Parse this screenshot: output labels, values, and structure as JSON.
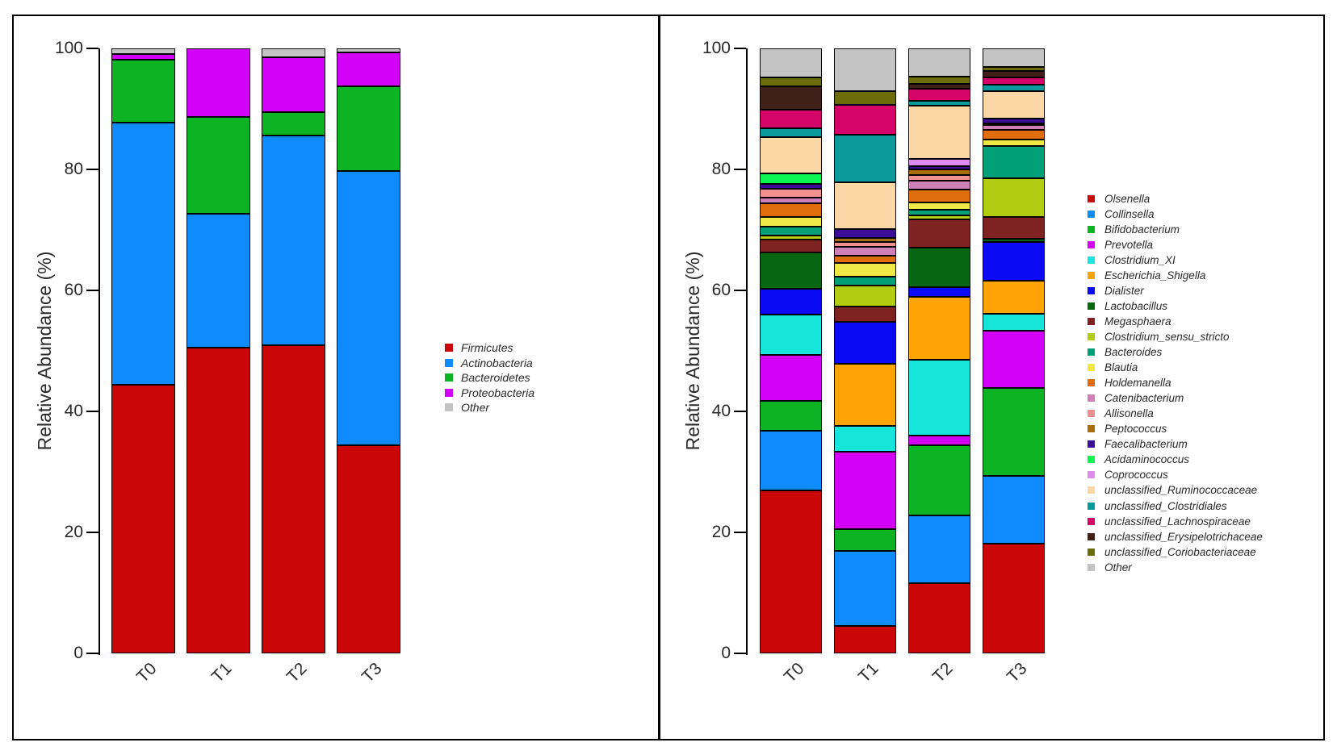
{
  "figure_title": "",
  "chart_data": [
    {
      "type": "bar",
      "stacked": true,
      "title": "",
      "xlabel": "",
      "ylabel": "Relative Abundance (%)",
      "ylim": [
        0,
        100
      ],
      "yticks": [
        0,
        20,
        40,
        60,
        80,
        100
      ],
      "grid": false,
      "legend_position": "right",
      "taxonomic_level": "phylum",
      "categories": [
        "T0",
        "T1",
        "T2",
        "T3"
      ],
      "series": [
        {
          "name": "Firmicutes",
          "color": "#CB0606",
          "values": [
            44.4,
            50.5,
            50.9,
            34.4
          ]
        },
        {
          "name": "Actinobacteria",
          "color": "#0E8CFF",
          "values": [
            43.4,
            22.2,
            34.7,
            45.3
          ]
        },
        {
          "name": "Bacteroidetes",
          "color": "#0CB423",
          "values": [
            10.4,
            16.0,
            3.9,
            14.0
          ]
        },
        {
          "name": "Proteobacteria",
          "color": "#D202F8",
          "values": [
            0.9,
            11.3,
            9.0,
            5.6
          ]
        },
        {
          "name": "Other",
          "color": "#C4C4C4",
          "values": [
            0.9,
            0.0,
            1.5,
            0.7
          ]
        }
      ]
    },
    {
      "type": "bar",
      "stacked": true,
      "title": "",
      "xlabel": "",
      "ylabel": "Relative Abundance (%)",
      "ylim": [
        0,
        100
      ],
      "yticks": [
        0,
        20,
        40,
        60,
        80,
        100
      ],
      "grid": false,
      "legend_position": "right",
      "taxonomic_level": "genus",
      "categories": [
        "T0",
        "T1",
        "T2",
        "T3"
      ],
      "series": [
        {
          "name": "Olsenella",
          "color": "#CB0606",
          "values": [
            27.0,
            4.6,
            11.6,
            18.2
          ]
        },
        {
          "name": "Collinsella",
          "color": "#0E8CFF",
          "values": [
            9.8,
            12.3,
            11.2,
            11.2
          ]
        },
        {
          "name": "Bifidobacterium",
          "color": "#0CB423",
          "values": [
            5.0,
            3.6,
            11.6,
            14.5
          ]
        },
        {
          "name": "Prevotella",
          "color": "#D202F8",
          "values": [
            7.6,
            12.9,
            1.6,
            9.4
          ]
        },
        {
          "name": "Clostridium_XI",
          "color": "#17E5DB",
          "values": [
            6.6,
            4.2,
            12.6,
            2.9
          ]
        },
        {
          "name": "Escherichia_Shigella",
          "color": "#FFA405",
          "values": [
            0.0,
            10.3,
            10.3,
            5.4
          ]
        },
        {
          "name": "Dialister",
          "color": "#0A0AF5",
          "values": [
            4.3,
            6.9,
            1.7,
            6.4
          ]
        },
        {
          "name": "Lactobacillus",
          "color": "#076612",
          "values": [
            6.0,
            0.0,
            6.5,
            0.5
          ]
        },
        {
          "name": "Megasphaera",
          "color": "#7E2222",
          "values": [
            2.1,
            2.5,
            4.6,
            3.7
          ]
        },
        {
          "name": "Clostridium_sensu_stricto",
          "color": "#B2CC12",
          "values": [
            0.7,
            3.5,
            0.7,
            6.4
          ]
        },
        {
          "name": "Bacteroides",
          "color": "#03A078",
          "values": [
            1.4,
            1.5,
            1.0,
            5.3
          ]
        },
        {
          "name": "Blautia",
          "color": "#EFE845",
          "values": [
            1.7,
            2.3,
            1.2,
            1.1
          ]
        },
        {
          "name": "Holdemanella",
          "color": "#E06D0C",
          "values": [
            2.2,
            1.2,
            2.1,
            1.6
          ]
        },
        {
          "name": "Catenibacterium",
          "color": "#CE7FB5",
          "values": [
            1.0,
            1.4,
            1.4,
            0.7
          ]
        },
        {
          "name": "Allisonella",
          "color": "#F49090",
          "values": [
            1.4,
            0.8,
            1.0,
            0.3
          ]
        },
        {
          "name": "Peptococcus",
          "color": "#AC6D10",
          "values": [
            0.0,
            0.7,
            0.9,
            0.0
          ]
        },
        {
          "name": "Faecalibacterium",
          "color": "#3B0D96",
          "values": [
            0.8,
            1.4,
            0.5,
            0.8
          ]
        },
        {
          "name": "Acidaminococcus",
          "color": "#0BF553",
          "values": [
            1.8,
            0.0,
            0.0,
            0.0
          ]
        },
        {
          "name": "Coprococcus",
          "color": "#DE8DEC",
          "values": [
            0.0,
            0.0,
            1.3,
            0.0
          ]
        },
        {
          "name": "unclassified_Ruminococcaceae",
          "color": "#FBD7A6",
          "values": [
            6.0,
            7.8,
            8.7,
            4.5
          ]
        },
        {
          "name": "unclassified_Clostridiales",
          "color": "#0B9B9C",
          "values": [
            1.4,
            7.9,
            0.9,
            1.1
          ]
        },
        {
          "name": "unclassified_Lachnospiraceae",
          "color": "#D40468",
          "values": [
            3.1,
            4.9,
            2.0,
            1.2
          ]
        },
        {
          "name": "unclassified_Erysipelotrichaceae",
          "color": "#402019",
          "values": [
            3.9,
            0.0,
            0.7,
            1.1
          ]
        },
        {
          "name": "unclassified_Coriobacteriaceae",
          "color": "#6C6C0B",
          "values": [
            1.4,
            2.3,
            1.3,
            0.7
          ]
        },
        {
          "name": "Other",
          "color": "#C4C4C4",
          "values": [
            4.8,
            7.0,
            4.6,
            3.0
          ]
        }
      ]
    }
  ]
}
